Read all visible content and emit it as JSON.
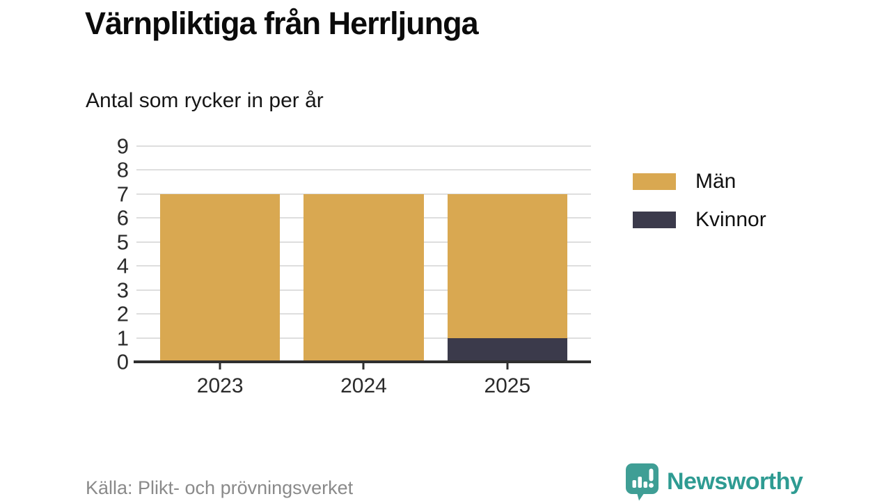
{
  "header": {
    "title": "Värnpliktiga från Herrljunga",
    "subtitle": "Antal som rycker in per år"
  },
  "chart_data": {
    "type": "bar",
    "stacked": true,
    "title": "Värnpliktiga från Herrljunga",
    "subtitle": "Antal som rycker in per år",
    "categories": [
      "2023",
      "2024",
      "2025"
    ],
    "series": [
      {
        "name": "Män",
        "color": "#d9a851",
        "values": [
          7,
          7,
          6
        ]
      },
      {
        "name": "Kvinnor",
        "color": "#3b3a4b",
        "values": [
          0,
          0,
          1
        ]
      }
    ],
    "stack_bottom_to_top": [
      "Kvinnor",
      "Män"
    ],
    "totals": [
      7,
      7,
      7
    ],
    "ylim": [
      0,
      9
    ],
    "yticks": [
      0,
      1,
      2,
      3,
      4,
      5,
      6,
      7,
      8,
      9
    ],
    "grid": true,
    "legend_position": "right",
    "colors": {
      "gridline": "#dedede",
      "axis": "#2f2f2f",
      "tick_label": "#2b2b2b"
    }
  },
  "footer": {
    "source": "Källa: Plikt- och prövningsverket",
    "brand": "Newsworthy",
    "brand_color": "#2e9b92"
  }
}
